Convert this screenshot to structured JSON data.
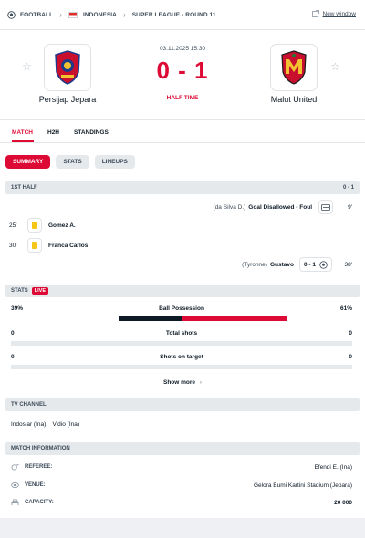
{
  "breadcrumb": {
    "sport": "FOOTBALL",
    "country": "INDONESIA",
    "league": "SUPER LEAGUE - ROUND 11"
  },
  "new_window_label": "New window",
  "match": {
    "date": "03.11.2025 15:30",
    "score": "0 - 1",
    "status": "HALF TIME",
    "home": {
      "name": "Persijap Jepara",
      "color": "#c8102e"
    },
    "away": {
      "name": "Malut United",
      "color": "#c8102e"
    }
  },
  "tabs": [
    {
      "label": "MATCH",
      "active": true
    },
    {
      "label": "H2H",
      "active": false
    },
    {
      "label": "STANDINGS",
      "active": false
    }
  ],
  "subtabs": [
    {
      "label": "SUMMARY",
      "active": true
    },
    {
      "label": "STATS",
      "active": false
    },
    {
      "label": "LINEUPS",
      "active": false
    }
  ],
  "first_half": {
    "title": "1ST HALF",
    "score": "0 - 1",
    "events": [
      {
        "minute": "9'",
        "side": "away",
        "player": "Goal Disallowed - Foul",
        "assist": "(da Silva D.)",
        "icon": "var-icon"
      },
      {
        "minute": "25'",
        "side": "home",
        "player": "Gomez A.",
        "icon": "yellow-card-icon"
      },
      {
        "minute": "30'",
        "side": "home",
        "player": "Franca Carlos",
        "icon": "yellow-card-icon"
      },
      {
        "minute": "38'",
        "side": "away",
        "player": "Gustavo",
        "assist": "(Tyronne)",
        "score": "0 - 1",
        "icon": "goal-ball-icon"
      }
    ]
  },
  "stats": {
    "title": "STATS",
    "live_label": "LIVE",
    "rows": [
      {
        "label": "Ball Possession",
        "home": "39%",
        "away": "61%",
        "home_share": 0.39
      },
      {
        "label": "Total shots",
        "home": "0",
        "away": "0",
        "home_share": 0
      },
      {
        "label": "Shots on target",
        "home": "0",
        "away": "0",
        "home_share": 0
      }
    ],
    "show_more": "Show more",
    "home_color": "#0d1a26",
    "away_color": "#dd0a35"
  },
  "tv": {
    "title": "TV CHANNEL",
    "channels": "Indosiar (Ina),   Vidio (Ina)"
  },
  "info": {
    "title": "MATCH INFORMATION",
    "rows": [
      {
        "label": "REFEREE:",
        "value": "Efendi E. (Ina)",
        "icon": "whistle-icon"
      },
      {
        "label": "VENUE:",
        "value": "Gelora Bumi Kartini Stadium (Jepara)",
        "icon": "stadium-icon"
      },
      {
        "label": "CAPACITY:",
        "value": "20 000",
        "icon": "capacity-icon"
      }
    ]
  }
}
